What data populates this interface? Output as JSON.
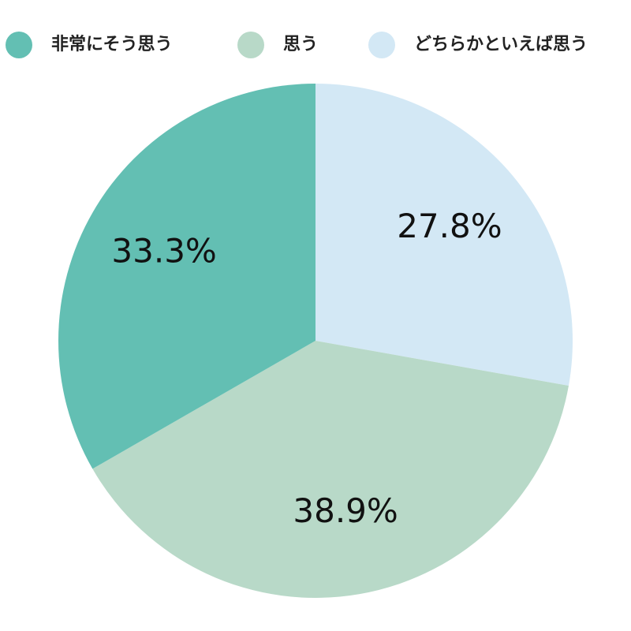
{
  "chart_data": {
    "type": "pie",
    "categories": [
      "非常にそう思う",
      "思う",
      "どちらかといえば思う"
    ],
    "values": [
      33.3,
      38.9,
      27.8
    ],
    "value_labels": [
      "33.3%",
      "38.9%",
      "27.8%"
    ],
    "colors": [
      "#63bfb3",
      "#b8d9c8",
      "#d3e8f5"
    ]
  }
}
